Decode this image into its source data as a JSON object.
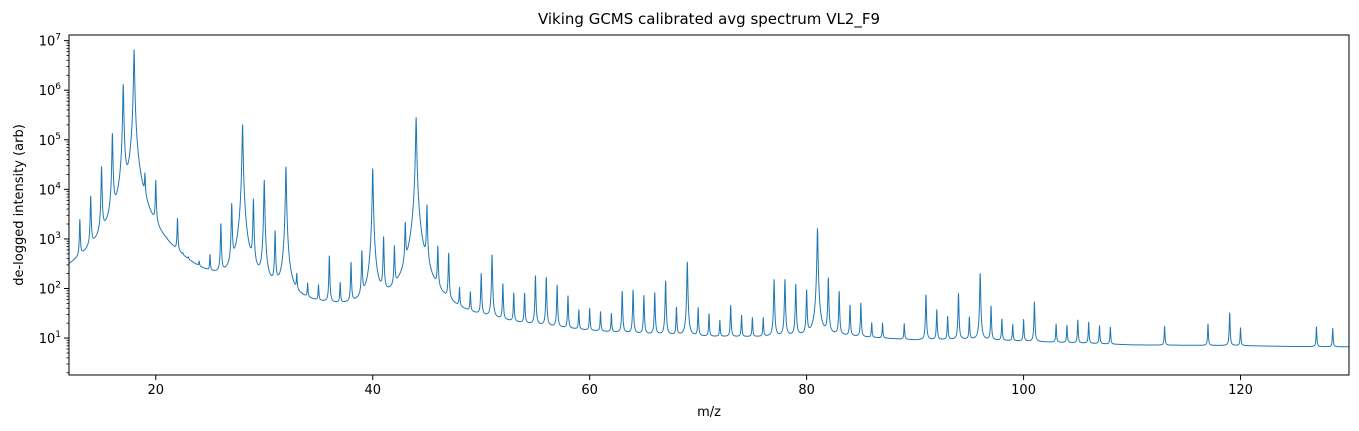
{
  "chart_data": {
    "type": "line",
    "title": "Viking GCMS calibrated avg spectrum VL2_F9",
    "xlabel": "m/z",
    "ylabel": "de-logged intensity (arb)",
    "xlim": [
      12,
      130
    ],
    "ylim": [
      1.8,
      13000000
    ],
    "yscale": "log",
    "grid": false,
    "x_ticks": [
      20,
      40,
      60,
      80,
      100,
      120
    ],
    "x_tick_labels": [
      "20",
      "40",
      "60",
      "80",
      "100",
      "120"
    ],
    "y_ticks": [
      10,
      100,
      1000,
      10000,
      100000,
      1000000,
      10000000
    ],
    "y_tick_labels": [
      {
        "base": "10",
        "exp": "1"
      },
      {
        "base": "10",
        "exp": "2"
      },
      {
        "base": "10",
        "exp": "3"
      },
      {
        "base": "10",
        "exp": "4"
      },
      {
        "base": "10",
        "exp": "5"
      },
      {
        "base": "10",
        "exp": "6"
      },
      {
        "base": "10",
        "exp": "7"
      }
    ],
    "line_color": "#1f77b4",
    "baseline": [
      [
        12,
        15
      ],
      [
        13,
        18
      ],
      [
        15,
        25
      ],
      [
        16.5,
        50
      ],
      [
        17.5,
        80
      ],
      [
        18.5,
        60
      ],
      [
        19.5,
        25
      ],
      [
        21,
        20
      ],
      [
        22,
        15
      ],
      [
        24,
        11
      ],
      [
        26,
        10
      ],
      [
        30,
        9.5
      ],
      [
        36,
        9.5
      ],
      [
        40,
        10
      ],
      [
        42,
        11
      ],
      [
        43,
        13
      ],
      [
        44,
        14
      ],
      [
        45,
        12
      ],
      [
        48,
        10
      ],
      [
        55,
        8
      ],
      [
        60,
        7
      ],
      [
        65,
        6.5
      ],
      [
        70,
        6.5
      ],
      [
        75,
        7
      ],
      [
        80,
        8
      ],
      [
        82,
        9
      ],
      [
        85,
        8
      ],
      [
        90,
        7
      ],
      [
        95,
        7.5
      ],
      [
        100,
        7
      ],
      [
        105,
        6.5
      ],
      [
        110,
        6
      ],
      [
        115,
        6
      ],
      [
        120,
        6
      ],
      [
        125,
        5.8
      ],
      [
        130,
        5.8
      ]
    ],
    "peaks": [
      {
        "x": 13,
        "y": 2000
      },
      {
        "x": 14,
        "y": 6500
      },
      {
        "x": 15,
        "y": 27000
      },
      {
        "x": 16,
        "y": 130000
      },
      {
        "x": 17,
        "y": 1300000
      },
      {
        "x": 18,
        "y": 6500000
      },
      {
        "x": 19,
        "y": 13000
      },
      {
        "x": 20,
        "y": 13000
      },
      {
        "x": 21,
        "y": 40
      },
      {
        "x": 22,
        "y": 2000
      },
      {
        "x": 22.5,
        "y": 40
      },
      {
        "x": 23,
        "y": 40
      },
      {
        "x": 24,
        "y": 70
      },
      {
        "x": 25,
        "y": 250
      },
      {
        "x": 26,
        "y": 1800
      },
      {
        "x": 27,
        "y": 4800
      },
      {
        "x": 28,
        "y": 200000
      },
      {
        "x": 29,
        "y": 6000
      },
      {
        "x": 30,
        "y": 15000
      },
      {
        "x": 31,
        "y": 1300
      },
      {
        "x": 32,
        "y": 28000
      },
      {
        "x": 33,
        "y": 100
      },
      {
        "x": 34,
        "y": 60
      },
      {
        "x": 35,
        "y": 60
      },
      {
        "x": 36,
        "y": 400
      },
      {
        "x": 37,
        "y": 80
      },
      {
        "x": 38,
        "y": 280
      },
      {
        "x": 39,
        "y": 500
      },
      {
        "x": 40,
        "y": 26000
      },
      {
        "x": 41,
        "y": 1000
      },
      {
        "x": 42,
        "y": 600
      },
      {
        "x": 43,
        "y": 1800
      },
      {
        "x": 44,
        "y": 280000
      },
      {
        "x": 45,
        "y": 4500
      },
      {
        "x": 46,
        "y": 600
      },
      {
        "x": 47,
        "y": 450
      },
      {
        "x": 48,
        "y": 60
      },
      {
        "x": 49,
        "y": 50
      },
      {
        "x": 50,
        "y": 170
      },
      {
        "x": 51,
        "y": 450
      },
      {
        "x": 52,
        "y": 100
      },
      {
        "x": 53,
        "y": 60
      },
      {
        "x": 54,
        "y": 60
      },
      {
        "x": 55,
        "y": 160
      },
      {
        "x": 56,
        "y": 150
      },
      {
        "x": 57,
        "y": 100
      },
      {
        "x": 58,
        "y": 55
      },
      {
        "x": 59,
        "y": 22
      },
      {
        "x": 60,
        "y": 25
      },
      {
        "x": 61,
        "y": 20
      },
      {
        "x": 62,
        "y": 18
      },
      {
        "x": 63,
        "y": 75
      },
      {
        "x": 64,
        "y": 80
      },
      {
        "x": 65,
        "y": 60
      },
      {
        "x": 66,
        "y": 70
      },
      {
        "x": 67,
        "y": 130
      },
      {
        "x": 68,
        "y": 30
      },
      {
        "x": 69,
        "y": 330
      },
      {
        "x": 70,
        "y": 30
      },
      {
        "x": 71,
        "y": 20
      },
      {
        "x": 72,
        "y": 12
      },
      {
        "x": 73,
        "y": 35
      },
      {
        "x": 74,
        "y": 18
      },
      {
        "x": 75,
        "y": 15
      },
      {
        "x": 76,
        "y": 15
      },
      {
        "x": 77,
        "y": 140
      },
      {
        "x": 78,
        "y": 140
      },
      {
        "x": 79,
        "y": 110
      },
      {
        "x": 80,
        "y": 80
      },
      {
        "x": 81,
        "y": 1600
      },
      {
        "x": 82,
        "y": 150
      },
      {
        "x": 83,
        "y": 75
      },
      {
        "x": 84,
        "y": 35
      },
      {
        "x": 85,
        "y": 40
      },
      {
        "x": 86,
        "y": 10
      },
      {
        "x": 87,
        "y": 10
      },
      {
        "x": 89,
        "y": 10
      },
      {
        "x": 91,
        "y": 65
      },
      {
        "x": 92,
        "y": 28
      },
      {
        "x": 93,
        "y": 18
      },
      {
        "x": 94,
        "y": 70
      },
      {
        "x": 95,
        "y": 17
      },
      {
        "x": 96,
        "y": 190
      },
      {
        "x": 97,
        "y": 35
      },
      {
        "x": 98,
        "y": 15
      },
      {
        "x": 99,
        "y": 10
      },
      {
        "x": 100,
        "y": 15
      },
      {
        "x": 101,
        "y": 45
      },
      {
        "x": 103,
        "y": 11
      },
      {
        "x": 104,
        "y": 10
      },
      {
        "x": 105,
        "y": 15
      },
      {
        "x": 106,
        "y": 13
      },
      {
        "x": 107,
        "y": 10
      },
      {
        "x": 108,
        "y": 9
      },
      {
        "x": 113,
        "y": 10
      },
      {
        "x": 117,
        "y": 12
      },
      {
        "x": 119,
        "y": 25
      },
      {
        "x": 120,
        "y": 9
      },
      {
        "x": 127,
        "y": 10
      },
      {
        "x": 128.5,
        "y": 9
      }
    ]
  }
}
